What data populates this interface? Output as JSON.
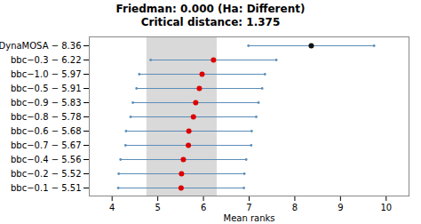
{
  "chart_data": {
    "type": "dot",
    "title": "Friedman: 0.000 (Ha: Different)",
    "subtitle": "Critical distance: 1.375",
    "xlabel": "Mean ranks",
    "categories": [
      "DynaMOSA − 8.36",
      "bbc−0.3 − 6.22",
      "bbc−1.0 − 5.97",
      "bbc−0.5 − 5.91",
      "bbc−0.9 − 5.83",
      "bbc−0.8 − 5.78",
      "bbc−0.6 − 5.68",
      "bbc−0.7 − 5.67",
      "bbc−0.4 − 5.56",
      "bbc−0.2 − 5.52",
      "bbc−0.1 − 5.51"
    ],
    "values": [
      8.36,
      6.22,
      5.97,
      5.91,
      5.83,
      5.78,
      5.68,
      5.67,
      5.56,
      5.52,
      5.51
    ],
    "interval_low": [
      6.985,
      4.845,
      4.595,
      4.535,
      4.455,
      4.405,
      4.305,
      4.295,
      4.185,
      4.145,
      4.135
    ],
    "interval_high": [
      9.735,
      7.595,
      7.345,
      7.285,
      7.205,
      7.155,
      7.055,
      7.045,
      6.935,
      6.895,
      6.885
    ],
    "shaded_range": [
      4.76,
      6.3
    ],
    "colors": [
      "#111111",
      "#dd0000",
      "#dd0000",
      "#dd0000",
      "#dd0000",
      "#dd0000",
      "#dd0000",
      "#dd0000",
      "#dd0000",
      "#dd0000",
      "#dd0000"
    ],
    "color": "#5b8db8",
    "xlim": [
      3.5,
      10.5
    ],
    "xticks": [
      4,
      5,
      6,
      7,
      8,
      9,
      10
    ],
    "grid": false
  }
}
